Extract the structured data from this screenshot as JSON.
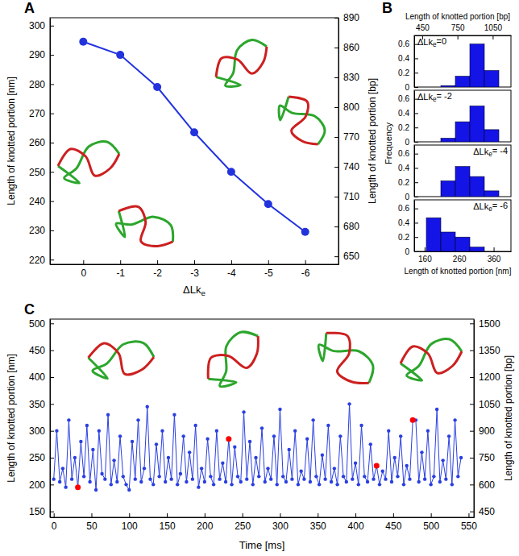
{
  "chart_data": [
    {
      "type": "line",
      "letter": "A",
      "xlabel": [
        "ΔLk",
        "e"
      ],
      "ylabel": "Length of knotted portion [nm]",
      "y2label": "Length of knotted portion [bp]",
      "x": [
        0,
        -1,
        -2,
        -3,
        -4,
        -5,
        -6
      ],
      "series": [
        {
          "color": "#2233dd",
          "marker": "circle",
          "line_style": "solid",
          "values": [
            294.5,
            290,
            279,
            263.5,
            250,
            239,
            229.5
          ]
        }
      ],
      "xlim": [
        0.9,
        -6.9
      ],
      "xticks": [
        0,
        -1,
        -2,
        -3,
        -4,
        -5,
        -6
      ],
      "ylim": [
        218.4,
        302.7
      ],
      "yticks": [
        220,
        230,
        240,
        250,
        260,
        270,
        280,
        290,
        300
      ],
      "y2lim": [
        642,
        890
      ],
      "y2ticks": [
        650,
        680,
        710,
        740,
        770,
        800,
        830,
        860,
        890
      ]
    },
    {
      "type": "histogram",
      "letter": "B",
      "xlabel": "Length of knotted portion [nm]",
      "x2label": "Length of knotted portion [bp]",
      "ylabel": "Frequency",
      "color": "#1414e6",
      "bins": [
        165,
        207,
        249,
        291,
        333,
        375
      ],
      "xlim": [
        130,
        410
      ],
      "xticks": [
        160,
        260,
        360
      ],
      "x2lim": [
        382,
        1205
      ],
      "x2ticks": [
        450,
        750,
        1050
      ],
      "ylim": [
        0,
        0.72
      ],
      "yticks": [
        0,
        0.2,
        0.4,
        0.6
      ],
      "panels": [
        {
          "label": [
            "ΔLk",
            "e",
            "=0"
          ],
          "values": [
            0,
            0.02,
            0.15,
            0.6,
            0.23
          ]
        },
        {
          "label": [
            "ΔLk",
            "e",
            "= -2"
          ],
          "values": [
            0,
            0.05,
            0.28,
            0.5,
            0.17
          ]
        },
        {
          "label": [
            "ΔLk",
            "e",
            "= -4"
          ],
          "values": [
            0,
            0.22,
            0.42,
            0.28,
            0.08
          ]
        },
        {
          "label": [
            "ΔLk",
            "e",
            "= -6"
          ],
          "values": [
            0.47,
            0.27,
            0.2,
            0.06,
            0
          ]
        }
      ]
    },
    {
      "type": "line",
      "letter": "C",
      "xlabel": "Time [ms]",
      "ylabel": "Length of knotted portion [nm]",
      "y2label": "Length of knotted portion [bp]",
      "series": [
        {
          "color": "#2a3fe0",
          "marker": "circle",
          "line_style": "solid",
          "x": [
            0,
            4,
            8,
            12,
            16,
            20,
            24,
            28,
            32,
            36,
            40,
            44,
            48,
            52,
            56,
            60,
            64,
            68,
            72,
            76,
            80,
            84,
            88,
            92,
            96,
            100,
            104,
            108,
            112,
            116,
            120,
            124,
            128,
            132,
            136,
            140,
            144,
            148,
            152,
            156,
            160,
            164,
            168,
            172,
            176,
            180,
            184,
            188,
            192,
            196,
            200,
            204,
            208,
            212,
            216,
            220,
            224,
            228,
            232,
            236,
            240,
            244,
            248,
            252,
            256,
            260,
            264,
            268,
            272,
            276,
            280,
            284,
            288,
            292,
            296,
            300,
            304,
            308,
            312,
            316,
            320,
            324,
            328,
            332,
            336,
            340,
            344,
            348,
            352,
            356,
            360,
            364,
            368,
            372,
            376,
            380,
            384,
            388,
            392,
            396,
            400,
            404,
            408,
            412,
            416,
            420,
            424,
            428,
            432,
            436,
            440,
            444,
            448,
            452,
            456,
            460,
            464,
            468,
            472,
            476,
            480,
            484,
            488,
            492,
            496,
            500,
            504,
            508,
            512,
            516,
            520,
            524,
            528,
            532,
            536,
            540
          ],
          "values": [
            210,
            300,
            205,
            230,
            195,
            320,
            210,
            250,
            195,
            280,
            215,
            310,
            205,
            265,
            190,
            300,
            220,
            210,
            330,
            200,
            245,
            205,
            290,
            215,
            200,
            190,
            280,
            210,
            320,
            205,
            230,
            345,
            210,
            200,
            275,
            215,
            300,
            205,
            250,
            210,
            330,
            200,
            220,
            290,
            205,
            260,
            210,
            310,
            195,
            230,
            205,
            285,
            215,
            200,
            300,
            210,
            240,
            205,
            285,
            200,
            270,
            215,
            205,
            335,
            210,
            280,
            200,
            250,
            215,
            305,
            205,
            230,
            210,
            290,
            200,
            340,
            215,
            205,
            265,
            210,
            300,
            200,
            225,
            210,
            285,
            205,
            320,
            215,
            200,
            255,
            210,
            310,
            205,
            230,
            200,
            290,
            215,
            205,
            350,
            210,
            240,
            200,
            310,
            215,
            205,
            275,
            210,
            235,
            200,
            225,
            210,
            300,
            205,
            250,
            215,
            290,
            200,
            235,
            210,
            320,
            320,
            205,
            260,
            210,
            300,
            200,
            215,
            340,
            205,
            245,
            210,
            290,
            200,
            320,
            215,
            250
          ]
        },
        {
          "type": "scatter",
          "color": "#ff0000",
          "marker": "circle",
          "x": [
            32,
            232,
            428,
            476
          ],
          "values": [
            195,
            285,
            235,
            320
          ]
        }
      ],
      "xlim": [
        -5,
        557
      ],
      "xticks": [
        0,
        50,
        100,
        150,
        200,
        250,
        300,
        350,
        400,
        450,
        500,
        550
      ],
      "ylim": [
        139,
        508
      ],
      "yticks": [
        150,
        200,
        250,
        300,
        350,
        400,
        450,
        500
      ],
      "y2lim": [
        417,
        1524
      ],
      "y2ticks": [
        450,
        600,
        750,
        900,
        1050,
        1200,
        1350,
        1500
      ]
    }
  ]
}
